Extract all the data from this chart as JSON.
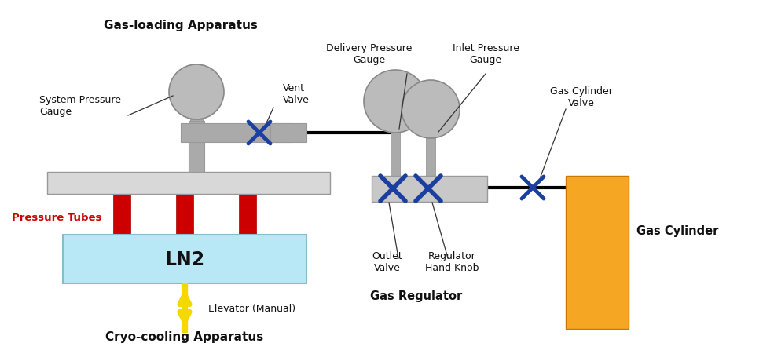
{
  "background_color": "#ffffff",
  "figsize": [
    9.71,
    4.52
  ],
  "dpi": 100,
  "colors": {
    "gray_part": "#aaaaaa",
    "gray_light": "#bbbbbb",
    "gray_bar": "#c8c8c8",
    "gray_bar_light": "#d8d8d8",
    "red_tube": "#cc0000",
    "orange_cylinder": "#f5a623",
    "light_blue_ln2": "#b8e8f5",
    "yellow_arrow": "#f5d800",
    "blue_valve": "#1a3fa0",
    "black_line": "#000000",
    "dark_text": "#111111",
    "red_label": "#cc0000"
  },
  "labels": {
    "gas_loading": "Gas-loading Apparatus",
    "system_pressure": "System Pressure\nGauge",
    "vent_valve": "Vent\nValve",
    "pressure_tubes": "Pressure Tubes",
    "delivery_pressure": "Delivery Pressure\nGauge",
    "inlet_pressure": "Inlet Pressure\nGauge",
    "outlet_valve": "Outlet\nValve",
    "regulator_hand": "Regulator\nHand Knob",
    "gas_regulator": "Gas Regulator",
    "gas_cylinder_valve": "Gas Cylinder\nValve",
    "gas_cylinder": "Gas Cylinder",
    "ln2": "LN2",
    "elevator": "Elevator (Manual)",
    "cryo_cooling": "Cryo-cooling Apparatus"
  }
}
